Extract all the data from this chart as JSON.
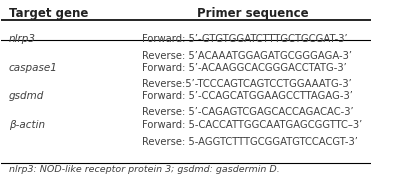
{
  "title_col1": "Target gene",
  "title_col2": "Primer sequence",
  "rows": [
    {
      "gene": "nlrp3",
      "gene_italic": true,
      "lines": [
        "Forward: 5’-GTGTGGATCTTTGCTGCGAT-3’",
        "Reverse: 5’ACAAATGGAGATGCGGGAGA-3’"
      ]
    },
    {
      "gene": "caspase1",
      "gene_italic": true,
      "lines": [
        "Forward: 5’-ACAAGGCACGGGACCTATG-3’",
        "Reverse:5’-TCCCAGTCAGTCCTGGAAATG-3’"
      ]
    },
    {
      "gene": "gsdmd",
      "gene_italic": true,
      "lines": [
        "Forward: 5’-CCAGCATGGAAGCCTTAGAG-3’",
        "Reverse: 5’-CAGAGTCGAGCACCAGACAC-3’"
      ]
    },
    {
      "gene": "β-actin",
      "gene_italic": true,
      "lines": [
        "Forward: 5-CACCATTGGCAATGAGCGGTTC–3’",
        "Reverse: 5-AGGTCTTTGCGGATGTCCACGT-3’"
      ]
    }
  ],
  "footnote": "nlrp3: NOD-like receptor protein 3; gsdmd: gasdermin D.",
  "bg_color": "#ffffff",
  "header_line_color": "#000000",
  "text_color": "#404040",
  "font_size": 7.5,
  "header_font_size": 8.5,
  "footnote_font_size": 6.8
}
